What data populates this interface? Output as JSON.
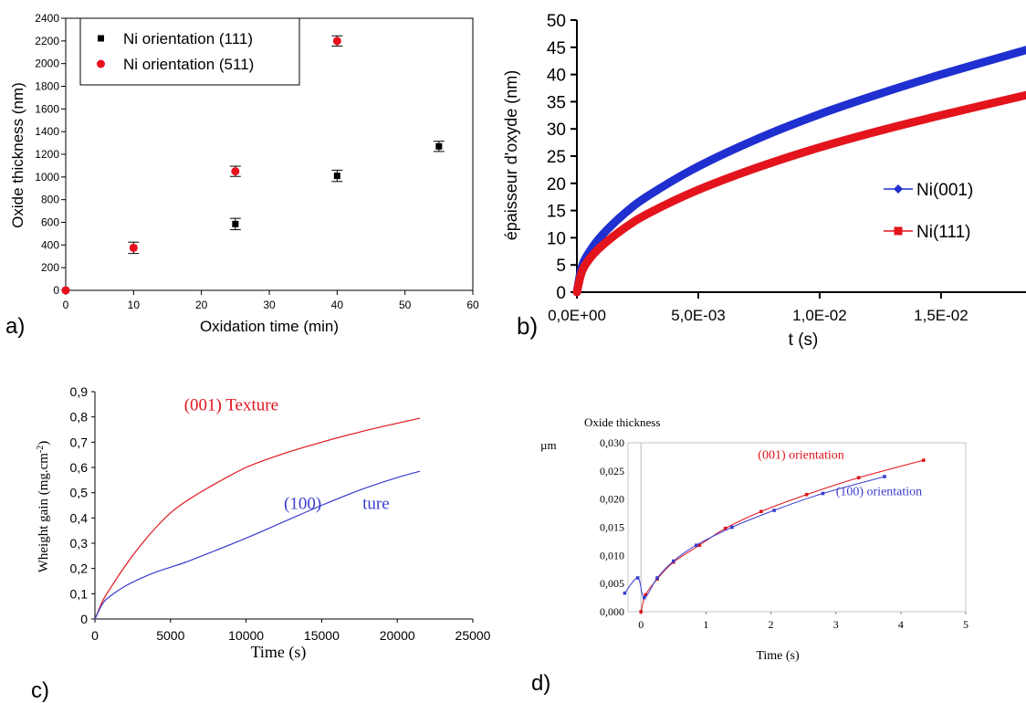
{
  "chart_data": [
    {
      "panel_label": "a)",
      "type": "scatter",
      "xlabel": "Oxidation time (min)",
      "ylabel": "Oxide thickness (nm)",
      "xlim": [
        0,
        60
      ],
      "ylim": [
        0,
        2400
      ],
      "xticks": [
        0,
        10,
        20,
        30,
        40,
        50,
        60
      ],
      "yticks": [
        0,
        200,
        400,
        600,
        800,
        1000,
        1200,
        1400,
        1600,
        1800,
        2000,
        2200,
        2400
      ],
      "legend_position": "top-left",
      "series": [
        {
          "name": "Ni orientation (111)",
          "color": "#000000",
          "marker": "square",
          "points": [
            [
              0,
              0,
              0
            ],
            [
              10,
              375,
              50
            ],
            [
              25,
              585,
              50
            ],
            [
              40,
              1010,
              50
            ],
            [
              55,
              1270,
              45
            ]
          ]
        },
        {
          "name": "Ni orientation (511)",
          "color": "#e8101c",
          "marker": "circle",
          "points": [
            [
              0,
              0,
              0
            ],
            [
              10,
              375,
              0
            ],
            [
              25,
              1050,
              45
            ],
            [
              40,
              2200,
              45
            ]
          ]
        }
      ]
    },
    {
      "panel_label": "b)",
      "type": "line",
      "xlabel": "t (s)",
      "ylabel": "épaisseur d'oxyde (nm)",
      "xlim": [
        0,
        0.0185
      ],
      "ylim": [
        0,
        50
      ],
      "xticks": [
        0,
        0.005,
        0.01,
        0.015
      ],
      "xtick_labels": [
        "0,0E+00",
        "5,0E-03",
        "1,0E-02",
        "1,5E-02"
      ],
      "yticks": [
        0,
        5,
        10,
        15,
        20,
        25,
        30,
        35,
        40,
        45,
        50
      ],
      "legend_position": "right",
      "series": [
        {
          "name": "Ni(001)",
          "color": "#1f2fd0",
          "marker": "diamond",
          "x": [
            0,
            0.0002,
            0.0005,
            0.001,
            0.002,
            0.003,
            0.005,
            0.0075,
            0.01,
            0.0125,
            0.015,
            0.0185
          ],
          "y": [
            0,
            4.6,
            7.3,
            10.3,
            14.6,
            17.9,
            23.1,
            28.3,
            32.7,
            36.5,
            40.0,
            44.5
          ]
        },
        {
          "name": "Ni(111)",
          "color": "#e3141c",
          "marker": "square",
          "x": [
            0,
            0.0002,
            0.0005,
            0.001,
            0.002,
            0.003,
            0.005,
            0.0075,
            0.01,
            0.0125,
            0.015,
            0.0185
          ],
          "y": [
            0,
            3.7,
            6.0,
            8.4,
            11.9,
            14.6,
            18.8,
            23.0,
            26.6,
            29.7,
            32.5,
            36.2
          ]
        }
      ]
    },
    {
      "panel_label": "c)",
      "type": "line",
      "xlabel": "Time (s)",
      "ylabel": "Wheight gain (mg.cm",
      "ylabel_sup": "-2",
      "ylabel_end": ")",
      "xlim": [
        0,
        25000
      ],
      "ylim": [
        0,
        0.9
      ],
      "xticks": [
        0,
        5000,
        10000,
        15000,
        20000,
        25000
      ],
      "yticks": [
        0,
        0.1,
        0.2,
        0.3,
        0.4,
        0.5,
        0.6,
        0.7,
        0.8,
        0.9
      ],
      "ytick_labels": [
        "0",
        "0,1",
        "0,2",
        "0,3",
        "0,4",
        "0,5",
        "0,6",
        "0,7",
        "0,8",
        "0,9"
      ],
      "annotations": [
        {
          "text": "(001) Texture",
          "color": "#e0141c",
          "x": 5900,
          "y": 0.826
        },
        {
          "text": "(100)",
          "color": "#3a3ccf",
          "x": 12500,
          "y": 0.435
        },
        {
          "text": "ture",
          "color": "#3a3ccf",
          "x": 17700,
          "y": 0.435
        }
      ],
      "series": [
        {
          "name": "(001) Texture",
          "color": "#e0141c",
          "x": [
            0,
            500,
            1000,
            2000,
            3000,
            4000,
            5000,
            6000,
            7500,
            10000,
            12500,
            15000,
            17500,
            20000,
            21500
          ],
          "y": [
            0,
            0.07,
            0.12,
            0.21,
            0.29,
            0.36,
            0.42,
            0.465,
            0.52,
            0.6,
            0.655,
            0.7,
            0.74,
            0.775,
            0.795
          ]
        },
        {
          "name": "(100) Texture",
          "color": "#3a3ccf",
          "x": [
            0,
            500,
            1000,
            2000,
            3000,
            4000,
            5000,
            6000,
            7500,
            10000,
            12500,
            15000,
            17500,
            20000,
            21500
          ],
          "y": [
            0,
            0.06,
            0.09,
            0.13,
            0.16,
            0.185,
            0.205,
            0.225,
            0.26,
            0.32,
            0.385,
            0.45,
            0.51,
            0.56,
            0.585
          ]
        }
      ]
    },
    {
      "panel_label": "d)",
      "type": "line",
      "title": "Oxide thickness",
      "xlabel": "Time (s)",
      "ylabel": "µm",
      "xlim": [
        -0.2,
        5
      ],
      "ylim": [
        0,
        0.03
      ],
      "xticks": [
        0,
        1,
        2,
        3,
        4,
        5
      ],
      "yticks": [
        0,
        0.005,
        0.01,
        0.015,
        0.02,
        0.025,
        0.03
      ],
      "ytick_labels": [
        "0,000",
        "0,005",
        "0,010",
        "0,015",
        "0,020",
        "0,025",
        "0,030"
      ],
      "annotations": [
        {
          "text": "(001) orientation",
          "color": "#e0141c",
          "x": 1.8,
          "y": 0.0272
        },
        {
          "text": "(100) orientation",
          "color": "#3a3ccf",
          "x": 3.0,
          "y": 0.0207
        }
      ],
      "series": [
        {
          "name": "(001) orientation",
          "color": "#e0141c",
          "x": [
            0,
            0.07,
            0.25,
            0.5,
            0.9,
            1.3,
            1.85,
            2.55,
            3.35,
            4.35
          ],
          "y": [
            0,
            0.003,
            0.0058,
            0.0088,
            0.0118,
            0.0148,
            0.0178,
            0.0208,
            0.0238,
            0.0269
          ]
        },
        {
          "name": "(100) orientation",
          "color": "#3a3ccf",
          "x": [
            -0.25,
            -0.05,
            0.05,
            0.25,
            0.5,
            0.85,
            1.4,
            2.05,
            2.8,
            3.75
          ],
          "y": [
            0.0033,
            0.006,
            0.0025,
            0.006,
            0.009,
            0.0118,
            0.015,
            0.018,
            0.021,
            0.024
          ]
        }
      ]
    }
  ]
}
